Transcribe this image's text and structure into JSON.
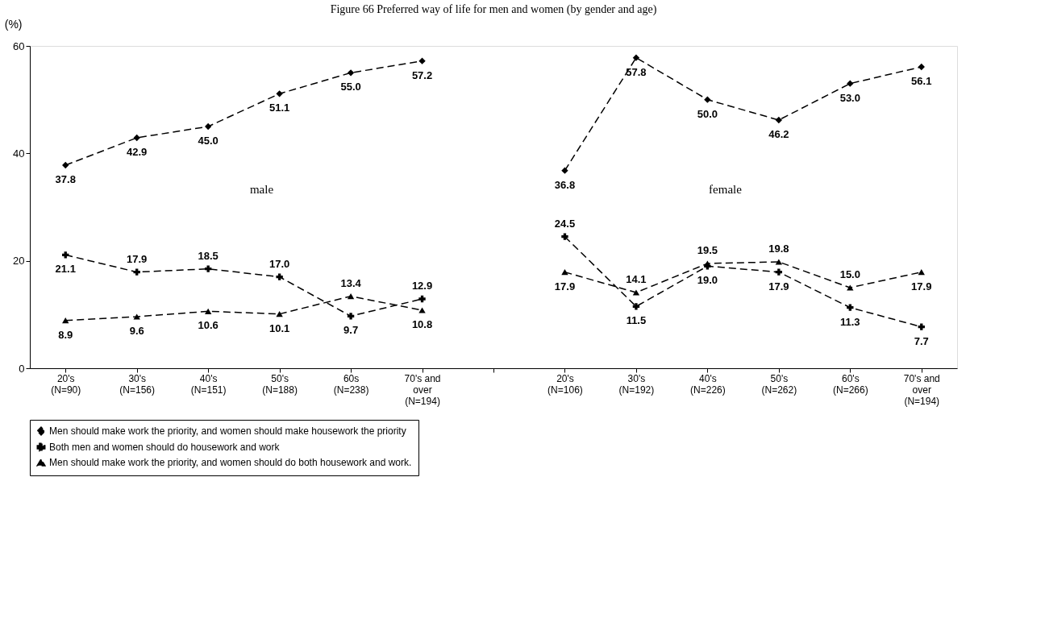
{
  "chart_data": {
    "type": "line",
    "title": "Figure 66  Preferred  way of life for men and women (by gender and age)",
    "ylabel": "(%)",
    "categories": [
      "20's\n(N=90)",
      "30's\n(N=156)",
      "40's\n(N=151)",
      "50's\n(N=188)",
      "60s\n(N=238)",
      "70's and\nover\n(N=194)",
      null,
      "20's\n(N=106)",
      "30's\n(N=192)",
      "40's\n(N=226)",
      "50's\n(N=262)",
      "60's\n(N=266)",
      "70's and\nover\n(N=194)"
    ],
    "series": [
      {
        "name": "Men should make work the priority, and women should make housework the priority",
        "color": "#000000",
        "marker": "diamond",
        "line_style": "dashed",
        "values": [
          37.8,
          42.9,
          45.0,
          51.1,
          55.0,
          57.2,
          null,
          36.8,
          57.8,
          50.0,
          46.2,
          53.0,
          56.1
        ],
        "value_labels": [
          "37.8",
          "42.9",
          "45.0",
          "51.1",
          "55.0",
          "57.2",
          null,
          "36.8",
          "57.8",
          "50.0",
          "46.2",
          "53.0",
          "56.1"
        ]
      },
      {
        "name": "Both men and women should do housework and work",
        "color": "#000000",
        "marker": "cross",
        "line_style": "dashed",
        "values": [
          21.1,
          17.9,
          18.5,
          17.0,
          9.7,
          12.9,
          null,
          24.5,
          11.5,
          19.0,
          17.9,
          11.3,
          7.7
        ],
        "value_labels": [
          "21.1",
          "17.9",
          "18.5",
          "17.0",
          "9.7",
          "12.9",
          null,
          "24.5",
          "11.5",
          "19.0",
          "17.9",
          "11.3",
          "7.7"
        ]
      },
      {
        "name": "Men should make work the priority, and women should do both housework and work.",
        "color": "#000000",
        "marker": "triangle",
        "line_style": "dashed",
        "values": [
          8.9,
          9.6,
          10.6,
          10.1,
          13.4,
          10.8,
          null,
          17.9,
          14.1,
          19.5,
          19.8,
          15.0,
          17.9
        ],
        "value_labels": [
          "8.9",
          "9.6",
          "10.6",
          "10.1",
          "13.4",
          "10.8",
          null,
          "17.9",
          "14.1",
          "19.5",
          "19.8",
          "15.0",
          "17.9"
        ]
      }
    ],
    "ylim": [
      0,
      60
    ],
    "yticks": [
      0,
      20,
      40,
      60
    ],
    "grid": false,
    "legend": "bottom",
    "annotations": [
      "male",
      "female"
    ]
  }
}
